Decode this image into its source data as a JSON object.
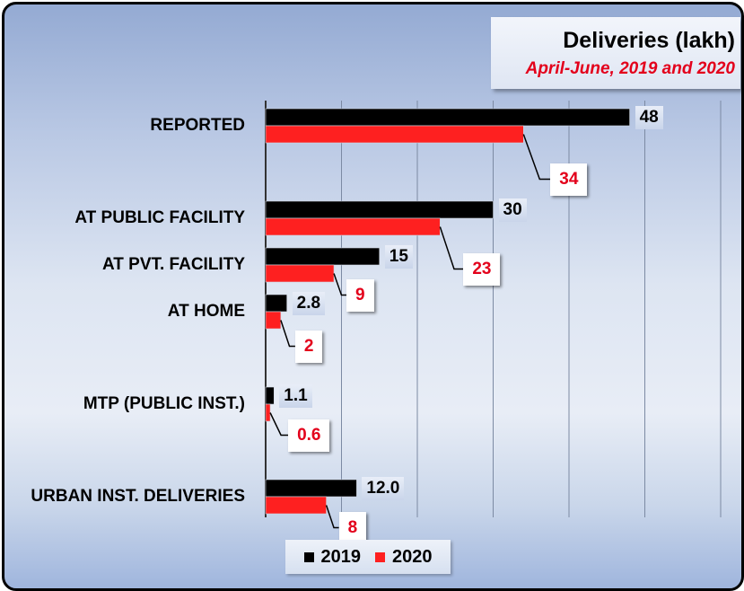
{
  "chart_data": {
    "type": "bar",
    "orientation": "horizontal",
    "title": "Deliveries (lakh)",
    "subtitle": "April-June, 2019 and 2020",
    "categories": [
      "REPORTED",
      "AT PUBLIC FACILITY",
      "AT PVT. FACILITY",
      "AT HOME",
      "MTP (PUBLIC INST.)",
      "URBAN INST. DELIVERIES"
    ],
    "series": [
      {
        "name": "2019",
        "values": [
          48,
          30,
          15,
          2.8,
          1.1,
          12.0
        ],
        "labels": [
          "48",
          "30",
          "15",
          "2.8",
          "1.1",
          "12.0"
        ],
        "color": "#000000"
      },
      {
        "name": "2020",
        "values": [
          34,
          23,
          9,
          2,
          0.6,
          8
        ],
        "labels": [
          "34",
          "23",
          "9",
          "2",
          "0.6",
          "8"
        ],
        "color": "#fe2020"
      }
    ],
    "xlim": [
      0,
      60
    ],
    "gridlines": "vertical",
    "legend": "bottom-center"
  }
}
